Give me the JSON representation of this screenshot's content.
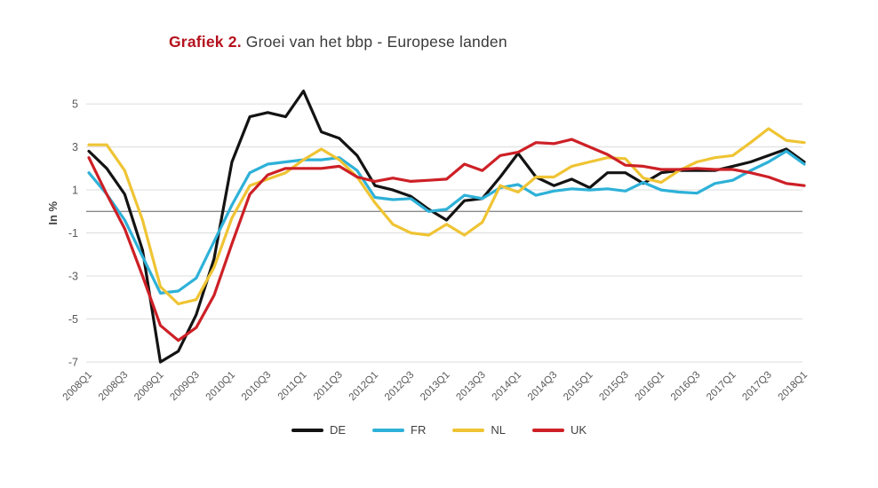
{
  "title": {
    "prefix": "Grafiek 2.",
    "rest": "Groei van het bbp - Europese landen"
  },
  "chart_data": {
    "type": "line",
    "x": [
      "2008Q1",
      "2008Q2",
      "2008Q3",
      "2008Q4",
      "2009Q1",
      "2009Q2",
      "2009Q3",
      "2009Q4",
      "2010Q1",
      "2010Q2",
      "2010Q3",
      "2010Q4",
      "2011Q1",
      "2011Q2",
      "2011Q3",
      "2011Q4",
      "2012Q1",
      "2012Q2",
      "2012Q3",
      "2012Q4",
      "2013Q1",
      "2013Q2",
      "2013Q3",
      "2013Q4",
      "2014Q1",
      "2014Q2",
      "2014Q3",
      "2014Q4",
      "2015Q1",
      "2015Q2",
      "2015Q3",
      "2015Q4",
      "2016Q1",
      "2016Q2",
      "2016Q3",
      "2016Q4",
      "2017Q1",
      "2017Q2",
      "2017Q3",
      "2017Q4",
      "2018Q1"
    ],
    "x_tick_step": 2,
    "series": [
      {
        "name": "DE",
        "color": "#131313",
        "values": [
          2.8,
          2.0,
          0.8,
          -1.8,
          -7.0,
          -6.5,
          -4.8,
          -2.2,
          2.3,
          4.4,
          4.6,
          4.4,
          5.6,
          3.7,
          3.4,
          2.6,
          1.2,
          1.0,
          0.7,
          0.1,
          -0.4,
          0.5,
          0.6,
          1.6,
          2.7,
          1.6,
          1.2,
          1.5,
          1.1,
          1.8,
          1.8,
          1.3,
          1.8,
          1.9,
          1.9,
          1.9,
          2.1,
          2.3,
          2.6,
          2.9,
          2.3
        ]
      },
      {
        "name": "FR",
        "color": "#2eb1d8",
        "values": [
          1.8,
          0.8,
          -0.4,
          -2.1,
          -3.8,
          -3.7,
          -3.1,
          -1.4,
          0.3,
          1.8,
          2.2,
          2.3,
          2.4,
          2.4,
          2.5,
          1.9,
          0.65,
          0.55,
          0.6,
          0.0,
          0.1,
          0.75,
          0.6,
          1.1,
          1.25,
          0.75,
          0.95,
          1.05,
          1.0,
          1.05,
          0.95,
          1.35,
          1.0,
          0.9,
          0.85,
          1.3,
          1.45,
          1.9,
          2.3,
          2.8,
          2.2
        ]
      },
      {
        "name": "NL",
        "color": "#efc434",
        "values": [
          3.1,
          3.1,
          1.9,
          -0.4,
          -3.5,
          -4.3,
          -4.1,
          -2.6,
          -0.3,
          1.2,
          1.5,
          1.8,
          2.4,
          2.9,
          2.4,
          1.6,
          0.4,
          -0.6,
          -1.0,
          -1.1,
          -0.6,
          -1.1,
          -0.5,
          1.2,
          0.9,
          1.6,
          1.6,
          2.1,
          2.3,
          2.5,
          2.45,
          1.55,
          1.35,
          1.9,
          2.3,
          2.5,
          2.6,
          3.2,
          3.85,
          3.3,
          3.2
        ]
      },
      {
        "name": "UK",
        "color": "#cd2026",
        "values": [
          2.5,
          0.8,
          -0.8,
          -3.0,
          -5.3,
          -6.0,
          -5.4,
          -3.9,
          -1.5,
          0.8,
          1.7,
          2.0,
          2.0,
          2.0,
          2.1,
          1.6,
          1.4,
          1.55,
          1.4,
          1.45,
          1.5,
          2.2,
          1.9,
          2.6,
          2.75,
          3.2,
          3.15,
          3.35,
          3.0,
          2.65,
          2.15,
          2.1,
          1.95,
          1.95,
          2.0,
          1.95,
          1.95,
          1.8,
          1.6,
          1.3,
          1.2
        ]
      }
    ],
    "ylabel": "In %",
    "yticks": [
      5,
      3,
      1,
      -1,
      -3,
      -5,
      -7
    ],
    "ylim": [
      -7.6,
      6.0
    ],
    "grid": true,
    "grid_color": "#dcdcdc",
    "zero_line": true,
    "zero_line_color": "#8a8a8a",
    "tick_text_color": "#595959",
    "axis_label_color": "#454545",
    "legend_position": "bottom"
  }
}
